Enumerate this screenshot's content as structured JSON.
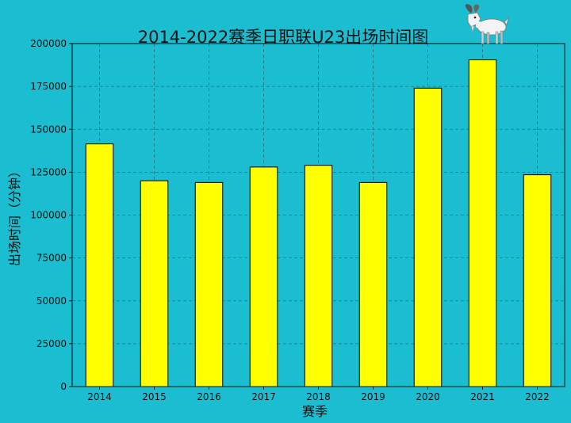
{
  "chart_data": {
    "type": "bar",
    "title": "2014-2022赛季日职联U23出场时间图",
    "xlabel": "赛季",
    "ylabel": "出场时间（分钟）",
    "categories": [
      "2014",
      "2015",
      "2016",
      "2017",
      "2018",
      "2019",
      "2020",
      "2021",
      "2022"
    ],
    "values": [
      141500,
      120000,
      119000,
      128000,
      129000,
      119000,
      174000,
      190500,
      123500
    ],
    "ylim": [
      0,
      200000
    ],
    "yticks": [
      "0",
      "25000",
      "50000",
      "75000",
      "100000",
      "125000",
      "150000",
      "175000",
      "200000"
    ],
    "grid": true,
    "legend": "none",
    "colors": {
      "background": "#1bbdd0",
      "bar_fill": "#ffff00",
      "bar_edge": "#000000",
      "grid": "#2a6f78"
    }
  },
  "decoration": {
    "icon": "goat-icon"
  }
}
